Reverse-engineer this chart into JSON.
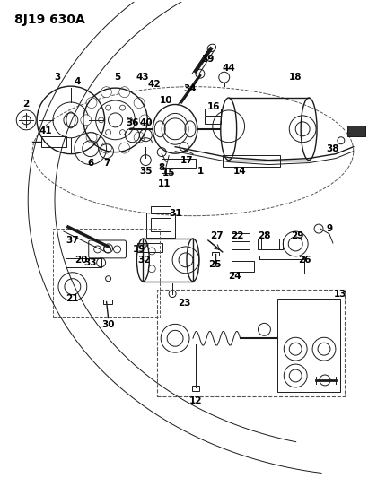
{
  "title": "8J19 630A",
  "bg_color": "#ffffff",
  "line_color": "#1a1a1a",
  "title_fontsize": 10,
  "label_fontsize": 7.5,
  "fig_width": 4.2,
  "fig_height": 5.33,
  "dpi": 100
}
